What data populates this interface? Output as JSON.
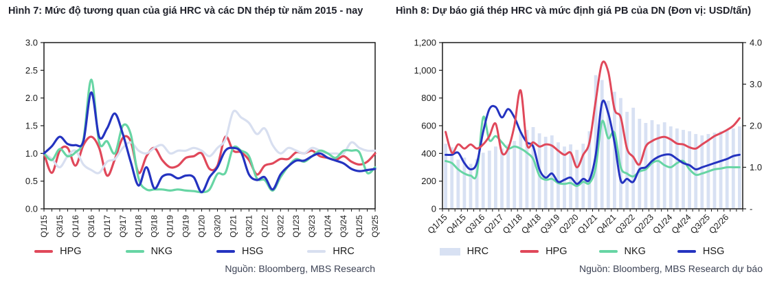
{
  "chart_data": [
    {
      "type": "line",
      "title": "Hình 7: Mức độ tương quan của giá HRC và các DN thép từ năm 2015 - nay",
      "source": "Nguồn: Bloomberg, MBS Research",
      "n_points": 43,
      "x_tick_every": 2,
      "x_labels": [
        "Q1/15",
        "Q3/15",
        "Q1/16",
        "Q3/16",
        "Q1/17",
        "Q3/17",
        "Q1/18",
        "Q3/18",
        "Q1/19",
        "Q3/19",
        "Q1/20",
        "Q3/20",
        "Q1/21",
        "Q3/21",
        "Q1/22",
        "Q3/22",
        "Q1/23",
        "Q3/23",
        "Q1/24",
        "Q3/24",
        "Q1/25",
        "Q3/25"
      ],
      "y_axis": {
        "min": 0,
        "max": 3,
        "ticks": [
          {
            "v": 3,
            "label": "3.0"
          },
          {
            "v": 2.5,
            "label": "2.5"
          },
          {
            "v": 2,
            "label": "2.0"
          },
          {
            "v": 1.5,
            "label": "1.5"
          },
          {
            "v": 1,
            "label": "1.0"
          },
          {
            "v": 0.5,
            "label": "0.5"
          },
          {
            "v": 0,
            "label": "0.0"
          }
        ]
      },
      "series": [
        {
          "name": "HPG",
          "color": "#e0485a",
          "axis": "left",
          "values": [
            1.0,
            0.65,
            1.05,
            1.1,
            0.78,
            1.15,
            1.3,
            1.1,
            0.6,
            0.9,
            1.28,
            1.22,
            0.65,
            0.95,
            1.1,
            0.88,
            0.75,
            0.78,
            0.92,
            0.95,
            1.0,
            0.72,
            0.78,
            1.3,
            1.05,
            1.02,
            0.88,
            0.62,
            0.78,
            0.82,
            0.9,
            0.9,
            1.02,
            1.0,
            1.05,
            0.95,
            0.92,
            0.88,
            0.95,
            0.85,
            0.8,
            0.85,
            1.0
          ]
        },
        {
          "name": "NKG",
          "color": "#67d5a4",
          "axis": "left",
          "values": [
            1.0,
            0.88,
            1.08,
            0.95,
            1.02,
            1.25,
            2.33,
            1.2,
            1.22,
            1.0,
            1.5,
            1.35,
            0.55,
            0.35,
            0.35,
            0.35,
            0.33,
            0.35,
            0.33,
            0.32,
            0.3,
            0.35,
            0.63,
            0.65,
            1.1,
            1.05,
            0.95,
            0.55,
            0.52,
            0.33,
            0.57,
            0.77,
            0.9,
            0.85,
            0.95,
            1.05,
            1.0,
            0.92,
            1.05,
            1.05,
            1.02,
            0.65,
            0.75
          ]
        },
        {
          "name": "HSG",
          "color": "#2433c0",
          "axis": "left",
          "values": [
            1.0,
            1.13,
            1.3,
            1.17,
            1.15,
            1.22,
            2.1,
            1.3,
            1.45,
            1.72,
            1.35,
            0.85,
            0.42,
            0.75,
            0.37,
            0.58,
            0.62,
            0.55,
            0.6,
            0.57,
            0.3,
            0.57,
            0.75,
            1.05,
            1.1,
            1.02,
            0.62,
            0.52,
            0.57,
            0.35,
            0.62,
            0.77,
            0.87,
            0.87,
            0.95,
            1.0,
            0.92,
            0.87,
            0.82,
            0.72,
            0.68,
            0.7,
            0.72
          ]
        },
        {
          "name": "HRC",
          "color": "#d8dff0",
          "axis": "left",
          "values": [
            1.0,
            0.9,
            0.75,
            0.95,
            1.05,
            0.8,
            0.7,
            0.65,
            0.85,
            0.9,
            1.1,
            1.2,
            1.05,
            1.0,
            1.1,
            1.15,
            1.0,
            1.05,
            1.05,
            1.1,
            1.05,
            0.95,
            1.1,
            1.25,
            1.75,
            1.65,
            1.55,
            1.35,
            1.45,
            1.15,
            1.0,
            1.1,
            1.05,
            1.0,
            1.1,
            1.05,
            1.0,
            1.0,
            1.0,
            1.2,
            1.1,
            1.05,
            1.05
          ]
        }
      ],
      "draw_order": [
        "HPG",
        "HRC",
        "NKG",
        "HSG"
      ],
      "legend_order": [
        "HPG",
        "NKG",
        "HSG",
        "HRC"
      ],
      "legend_position": "bottom",
      "grid": false
    },
    {
      "type": "combo_bar_line",
      "title": "Hình 8: Dự báo giá thép HRC và mức định giá PB của DN (Đơn vị: USD/tấn)",
      "source": "Nguồn: Bloomberg, MBS Research dự báo",
      "n_points": 48,
      "x_tick_every": 3,
      "x_labels": [
        "Q1/15",
        "Q4/15",
        "Q3/16",
        "Q2/17",
        "Q1/18",
        "Q4/18",
        "Q3/19",
        "Q2/20",
        "Q1/21",
        "Q4/21",
        "Q3/22",
        "Q2/23",
        "Q1/24",
        "Q4/24",
        "Q3/25",
        "Q2/26"
      ],
      "y_axis_left": {
        "min": 0,
        "max": 1200,
        "ticks": [
          {
            "v": 1200,
            "label": "1,200"
          },
          {
            "v": 1000,
            "label": "1,000"
          },
          {
            "v": 800,
            "label": "800"
          },
          {
            "v": 600,
            "label": "600"
          },
          {
            "v": 400,
            "label": "400"
          },
          {
            "v": 200,
            "label": "200"
          },
          {
            "v": 0,
            "label": "0"
          }
        ]
      },
      "y_axis_right": {
        "min": 0,
        "max": 4,
        "ticks": [
          {
            "v": 4,
            "label": "4.0"
          },
          {
            "v": 3,
            "label": "3.0"
          },
          {
            "v": 2,
            "label": "2.0"
          },
          {
            "v": 1,
            "label": "1.0"
          },
          {
            "v": 0,
            "label": "-"
          }
        ]
      },
      "bar_series": {
        "name": "HRC",
        "color": "#d8e1f3",
        "axis": "left",
        "values": [
          470,
          445,
          355,
          370,
          325,
          360,
          405,
          420,
          450,
          435,
          465,
          490,
          555,
          570,
          590,
          545,
          520,
          530,
          480,
          450,
          465,
          425,
          470,
          560,
          965,
          930,
          780,
          845,
          800,
          700,
          730,
          650,
          620,
          640,
          610,
          625,
          595,
          580,
          570,
          560,
          540,
          530,
          540,
          550,
          560,
          570,
          580,
          595
        ]
      },
      "line_series": [
        {
          "name": "HPG",
          "color": "#e0485a",
          "axis": "right",
          "values": [
            1.85,
            1.35,
            1.55,
            1.45,
            1.55,
            1.45,
            1.55,
            1.75,
            2.05,
            1.35,
            1.45,
            2.0,
            2.85,
            1.55,
            1.6,
            1.5,
            1.55,
            1.52,
            1.4,
            1.3,
            1.35,
            1.0,
            1.3,
            1.6,
            2.6,
            3.5,
            3.3,
            2.4,
            2.2,
            1.45,
            1.25,
            1.07,
            1.5,
            1.63,
            1.7,
            1.73,
            1.67,
            1.57,
            1.55,
            1.48,
            1.45,
            1.55,
            1.65,
            1.75,
            1.82,
            1.9,
            2.0,
            2.18
          ]
        },
        {
          "name": "NKG",
          "color": "#67d5a4",
          "axis": "right",
          "values": [
            1.15,
            1.1,
            0.95,
            0.85,
            0.8,
            0.85,
            2.2,
            1.65,
            1.75,
            1.6,
            1.45,
            1.5,
            1.45,
            1.35,
            1.2,
            0.8,
            0.7,
            0.72,
            0.62,
            0.6,
            0.62,
            0.55,
            0.65,
            0.62,
            1.0,
            2.1,
            1.7,
            1.83,
            1.0,
            0.85,
            0.78,
            0.9,
            0.95,
            1.1,
            1.15,
            1.05,
            1.0,
            1.1,
            1.15,
            0.95,
            0.82,
            0.85,
            0.9,
            0.95,
            0.97,
            1.0,
            1.0,
            1.0
          ]
        },
        {
          "name": "HSG",
          "color": "#2433c0",
          "axis": "right",
          "values": [
            1.3,
            1.3,
            1.35,
            1.1,
            0.95,
            1.1,
            1.85,
            2.4,
            2.45,
            2.2,
            2.4,
            2.2,
            1.85,
            1.6,
            1.5,
            0.95,
            0.75,
            0.85,
            0.65,
            0.7,
            0.75,
            0.6,
            0.72,
            0.7,
            1.3,
            2.55,
            2.3,
            1.6,
            0.68,
            0.72,
            0.65,
            0.95,
            1.0,
            1.15,
            1.25,
            1.3,
            1.3,
            1.2,
            1.1,
            1.05,
            0.95,
            1.0,
            1.05,
            1.1,
            1.15,
            1.2,
            1.27,
            1.3
          ]
        }
      ],
      "draw_order": [
        "NKG",
        "HSG",
        "HPG"
      ],
      "legend_order": [
        "HRC",
        "HPG",
        "NKG",
        "HSG"
      ],
      "legend_position": "bottom",
      "grid": false
    }
  ],
  "colors": {
    "frame": "#1a1a1a",
    "hpg": "#e0485a",
    "nkg": "#67d5a4",
    "hsg": "#2433c0",
    "hrc_line": "#d8dff0",
    "hrc_bar": "#d8e1f3"
  }
}
